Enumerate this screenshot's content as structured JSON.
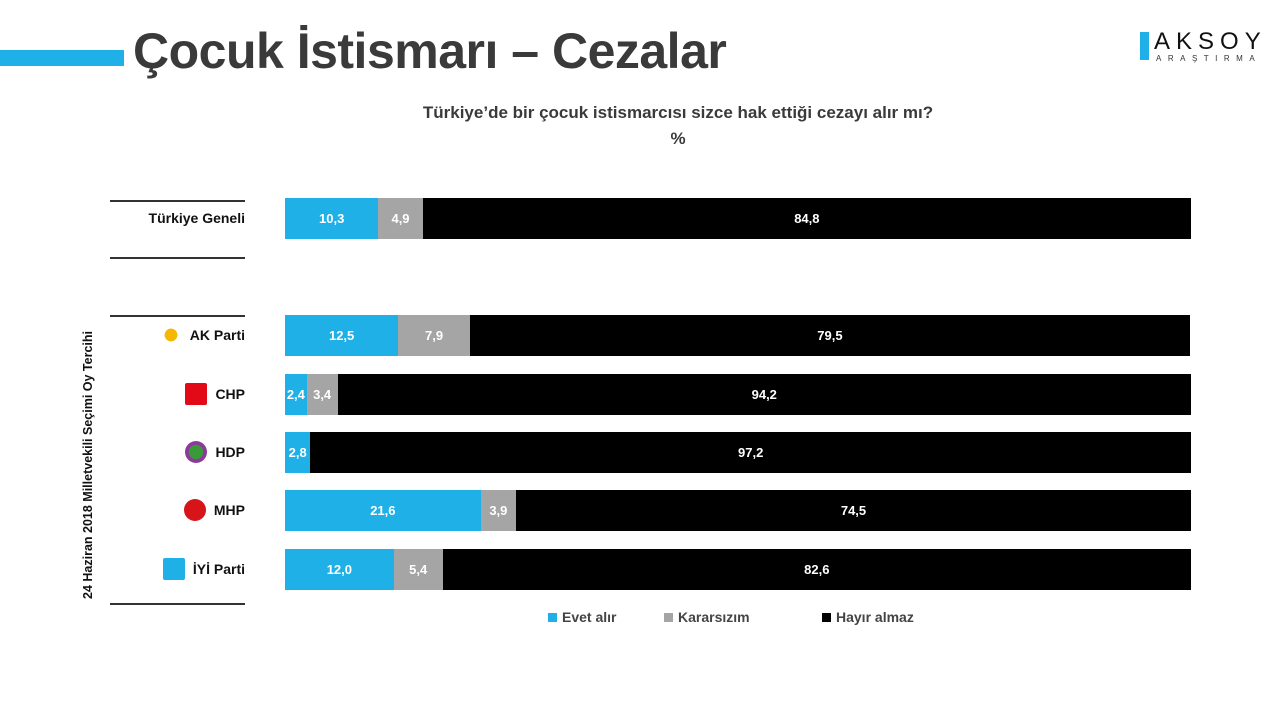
{
  "title": "Çocuk İstismarı – Cezalar",
  "brand": {
    "name": "AKSOY",
    "sub": "ARAŞTIRMA"
  },
  "chart_data": {
    "type": "bar",
    "orientation": "horizontal-stacked-100",
    "title": "Türkiye’de bir çocuk istismarcısı sizce hak ettiği cezayı alır mı?",
    "subtitle": "%",
    "group_label": "24 Haziran 2018 Milletvekili Seçimi Oy Tercihi",
    "categories": [
      "Türkiye Geneli",
      "AK Parti",
      "CHP",
      "HDP",
      "MHP",
      "İYİ Parti"
    ],
    "series": [
      {
        "name": "Evet alır",
        "color": "#1fb0e8",
        "values": [
          10.3,
          12.5,
          2.4,
          2.8,
          21.6,
          12.0
        ],
        "labels": [
          "10,3",
          "12,5",
          "2,4",
          "2,8",
          "21,6",
          "12,0"
        ]
      },
      {
        "name": "Kararsızım",
        "color": "#a5a5a5",
        "values": [
          4.9,
          7.9,
          3.4,
          0,
          3.9,
          5.4
        ],
        "labels": [
          "4,9",
          "7,9",
          "3,4",
          "",
          "3,9",
          "5,4"
        ]
      },
      {
        "name": "Hayır almaz",
        "color": "#000000",
        "values": [
          84.8,
          79.5,
          94.2,
          97.2,
          74.5,
          82.6
        ],
        "labels": [
          "84,8",
          "79,5",
          "94,2",
          "97,2",
          "74,5",
          "82,6"
        ]
      }
    ],
    "legend_position": "bottom",
    "party_icons": [
      "",
      "ak-parti-logo-icon",
      "chp-logo-icon",
      "hdp-logo-icon",
      "mhp-logo-icon",
      "iyi-parti-logo-icon"
    ]
  }
}
